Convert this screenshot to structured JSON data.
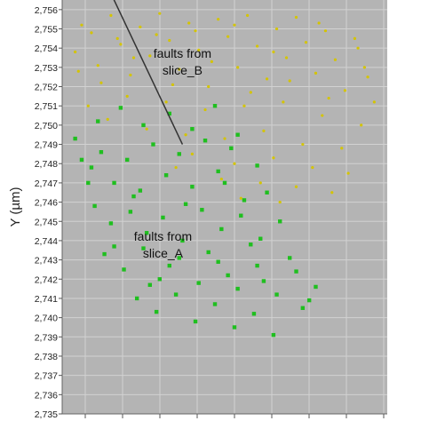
{
  "chart_data": {
    "type": "scatter",
    "title": "",
    "xlabel": "",
    "ylabel": "Y (µm)",
    "ylim": [
      2.735,
      2.7565
    ],
    "xlim": [
      0,
      10
    ],
    "y_ticks": [
      2.756,
      2.755,
      2.754,
      2.753,
      2.752,
      2.751,
      2.75,
      2.749,
      2.748,
      2.747,
      2.746,
      2.745,
      2.744,
      2.743,
      2.742,
      2.741,
      2.74,
      2.739,
      2.738,
      2.737,
      2.736,
      2.735
    ],
    "y_tick_labels": [
      "2,756",
      "2,755",
      "2,754",
      "2,753",
      "2,752",
      "2,751",
      "2,750",
      "2,749",
      "2,748",
      "2,747",
      "2,746",
      "2,745",
      "2,744",
      "2,743",
      "2,742",
      "2,741",
      "2,740",
      "2,739",
      "2,738",
      "2,737",
      "2,736",
      "2,735"
    ],
    "x_tick_count": 9,
    "grid": true,
    "plot_background": "#b4b4b4",
    "grid_color": "#d2d2d2",
    "series": [
      {
        "color": "#d4c400",
        "marker": "small-circle",
        "points": [
          [
            0.4,
            2.7538
          ],
          [
            0.6,
            2.7552
          ],
          [
            0.9,
            2.7548
          ],
          [
            1.1,
            2.7531
          ],
          [
            1.5,
            2.7557
          ],
          [
            1.8,
            2.7542
          ],
          [
            2.1,
            2.7526
          ],
          [
            2.4,
            2.7551
          ],
          [
            2.7,
            2.7536
          ],
          [
            3.0,
            2.7558
          ],
          [
            3.3,
            2.7544
          ],
          [
            3.6,
            2.7529
          ],
          [
            3.9,
            2.7553
          ],
          [
            4.2,
            2.7539
          ],
          [
            4.5,
            2.752
          ],
          [
            4.8,
            2.7555
          ],
          [
            5.1,
            2.7546
          ],
          [
            5.4,
            2.753
          ],
          [
            5.7,
            2.7557
          ],
          [
            6.0,
            2.7541
          ],
          [
            6.3,
            2.7524
          ],
          [
            6.6,
            2.755
          ],
          [
            6.9,
            2.7535
          ],
          [
            7.2,
            2.7556
          ],
          [
            7.5,
            2.7543
          ],
          [
            7.8,
            2.7527
          ],
          [
            8.1,
            2.7549
          ],
          [
            8.4,
            2.7534
          ],
          [
            8.7,
            2.7518
          ],
          [
            9.0,
            2.7545
          ],
          [
            9.3,
            2.753
          ],
          [
            0.8,
            2.751
          ],
          [
            1.4,
            2.7503
          ],
          [
            2.0,
            2.7515
          ],
          [
            2.6,
            2.7498
          ],
          [
            3.2,
            2.7512
          ],
          [
            3.8,
            2.7495
          ],
          [
            4.4,
            2.7508
          ],
          [
            5.0,
            2.7493
          ],
          [
            5.6,
            2.751
          ],
          [
            6.2,
            2.7497
          ],
          [
            6.8,
            2.7512
          ],
          [
            7.4,
            2.749
          ],
          [
            8.0,
            2.7505
          ],
          [
            8.6,
            2.7488
          ],
          [
            9.2,
            2.75
          ],
          [
            1.2,
            2.7522
          ],
          [
            2.2,
            2.7535
          ],
          [
            3.4,
            2.7521
          ],
          [
            4.6,
            2.7533
          ],
          [
            5.8,
            2.7517
          ],
          [
            7.0,
            2.7523
          ],
          [
            8.2,
            2.7514
          ],
          [
            9.4,
            2.7525
          ],
          [
            4.0,
            2.7485
          ],
          [
            5.3,
            2.748
          ],
          [
            6.5,
            2.7483
          ],
          [
            7.7,
            2.7478
          ],
          [
            8.8,
            2.7475
          ],
          [
            3.5,
            2.7478
          ],
          [
            4.9,
            2.7472
          ],
          [
            6.1,
            2.747
          ],
          [
            7.2,
            2.7468
          ],
          [
            8.3,
            2.7465
          ],
          [
            5.5,
            2.7462
          ],
          [
            6.7,
            2.746
          ],
          [
            1.7,
            2.7545
          ],
          [
            2.9,
            2.7547
          ],
          [
            4.1,
            2.7549
          ],
          [
            5.3,
            2.7552
          ],
          [
            6.5,
            2.7538
          ],
          [
            7.9,
            2.7553
          ],
          [
            9.1,
            2.754
          ],
          [
            0.5,
            2.7528
          ],
          [
            9.6,
            2.7512
          ]
        ]
      },
      {
        "color": "#1fbf1f",
        "marker": "square",
        "points": [
          [
            0.4,
            2.7493
          ],
          [
            0.9,
            2.7478
          ],
          [
            1.2,
            2.7486
          ],
          [
            1.6,
            2.747
          ],
          [
            2.0,
            2.7482
          ],
          [
            2.4,
            2.7466
          ],
          [
            2.8,
            2.749
          ],
          [
            3.2,
            2.7474
          ],
          [
            3.6,
            2.7485
          ],
          [
            4.0,
            2.7468
          ],
          [
            4.4,
            2.7492
          ],
          [
            4.8,
            2.7476
          ],
          [
            5.2,
            2.7488
          ],
          [
            5.6,
            2.7461
          ],
          [
            6.0,
            2.7479
          ],
          [
            1.0,
            2.7458
          ],
          [
            1.5,
            2.7449
          ],
          [
            2.1,
            2.7455
          ],
          [
            2.6,
            2.7444
          ],
          [
            3.1,
            2.7452
          ],
          [
            3.7,
            2.744
          ],
          [
            4.3,
            2.7456
          ],
          [
            4.9,
            2.7446
          ],
          [
            5.5,
            2.7453
          ],
          [
            6.1,
            2.7441
          ],
          [
            6.7,
            2.745
          ],
          [
            1.3,
            2.7433
          ],
          [
            1.9,
            2.7425
          ],
          [
            2.5,
            2.7436
          ],
          [
            3.0,
            2.742
          ],
          [
            3.6,
            2.7431
          ],
          [
            4.2,
            2.7418
          ],
          [
            4.8,
            2.7429
          ],
          [
            5.4,
            2.7415
          ],
          [
            6.0,
            2.7427
          ],
          [
            6.6,
            2.7412
          ],
          [
            7.2,
            2.7424
          ],
          [
            7.8,
            2.7416
          ],
          [
            2.3,
            2.741
          ],
          [
            2.9,
            2.7403
          ],
          [
            3.5,
            2.7412
          ],
          [
            4.1,
            2.7398
          ],
          [
            4.7,
            2.7407
          ],
          [
            5.3,
            2.7395
          ],
          [
            5.9,
            2.7402
          ],
          [
            6.5,
            2.7391
          ],
          [
            7.4,
            2.7405
          ],
          [
            0.8,
            2.747
          ],
          [
            1.1,
            2.7502
          ],
          [
            1.8,
            2.7509
          ],
          [
            2.5,
            2.75
          ],
          [
            3.3,
            2.7506
          ],
          [
            4.0,
            2.7498
          ],
          [
            4.7,
            2.751
          ],
          [
            5.4,
            2.7495
          ],
          [
            2.2,
            2.7463
          ],
          [
            3.8,
            2.7459
          ],
          [
            5.0,
            2.747
          ],
          [
            6.3,
            2.7465
          ],
          [
            1.6,
            2.7437
          ],
          [
            4.5,
            2.7434
          ],
          [
            5.8,
            2.7438
          ],
          [
            7.0,
            2.7431
          ],
          [
            6.2,
            2.7419
          ],
          [
            3.3,
            2.7427
          ],
          [
            2.7,
            2.7417
          ],
          [
            5.1,
            2.7422
          ],
          [
            0.6,
            2.7482
          ],
          [
            7.6,
            2.7409
          ]
        ]
      }
    ],
    "fault_line": [
      [
        1.4,
        2.7572
      ],
      [
        3.7,
        2.749
      ]
    ],
    "annotations": [
      {
        "text_line1": "faults from",
        "text_line2": "slice_B",
        "x": 3.7,
        "y": 2.7535
      },
      {
        "text_line1": "faults from",
        "text_line2": "slice_A",
        "x": 3.1,
        "y": 2.744
      }
    ]
  }
}
